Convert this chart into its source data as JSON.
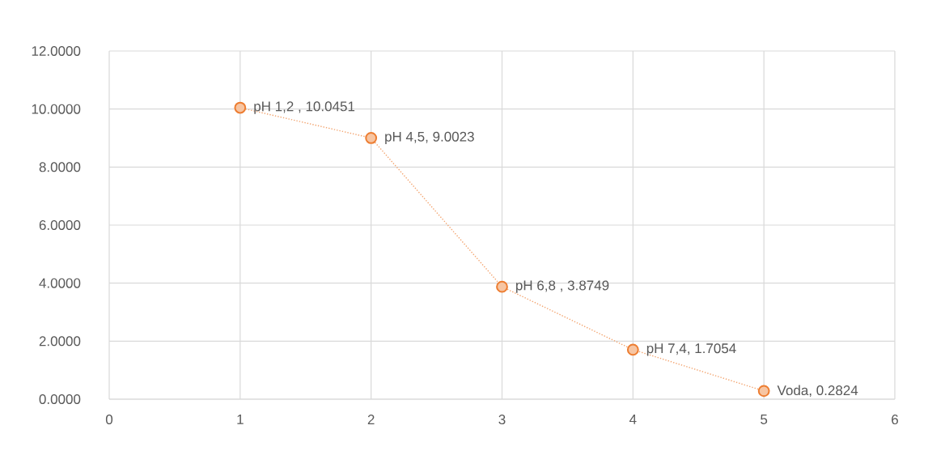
{
  "chart_data": {
    "type": "line",
    "x": [
      1,
      2,
      3,
      4,
      5
    ],
    "values": [
      10.0451,
      9.0023,
      3.8749,
      1.7054,
      0.2824
    ],
    "value_labels": [
      "pH 1,2 , 10.0451",
      "pH 4,5, 9.0023",
      "pH 6,8 , 3.8749",
      "pH 7,4, 1.7054",
      "Voda, 0.2824"
    ],
    "color": "#ed7d31",
    "marker": "circle",
    "line_style": "dotted",
    "grid": true,
    "xlim": [
      0,
      6
    ],
    "xticks": [
      0,
      1,
      2,
      3,
      4,
      5,
      6
    ],
    "ylim": [
      0,
      12
    ],
    "yticks": [
      {
        "value": 0,
        "label": "0.0000"
      },
      {
        "value": 2,
        "label": "2.0000"
      },
      {
        "value": 4,
        "label": "4.0000"
      },
      {
        "value": 6,
        "label": "6.0000"
      },
      {
        "value": 8,
        "label": "8.0000"
      },
      {
        "value": 10,
        "label": "10.0000"
      },
      {
        "value": 12,
        "label": "12.0000"
      }
    ]
  }
}
